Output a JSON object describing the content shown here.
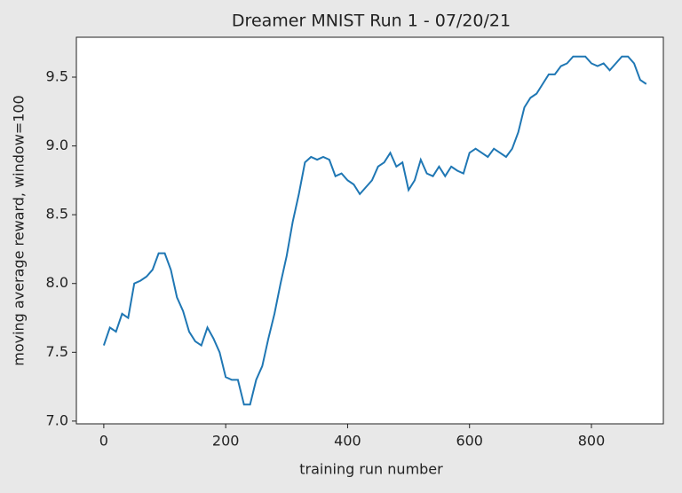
{
  "chart_data": {
    "type": "line",
    "title": "Dreamer MNIST Run 1 - 07/20/21",
    "x_label": "training run number",
    "y_label": "moving average reward, window=100",
    "x": [
      0,
      10,
      20,
      30,
      40,
      50,
      60,
      70,
      80,
      90,
      100,
      110,
      120,
      130,
      140,
      150,
      160,
      170,
      180,
      190,
      200,
      210,
      220,
      230,
      240,
      250,
      260,
      270,
      280,
      290,
      300,
      310,
      320,
      330,
      340,
      350,
      360,
      370,
      380,
      390,
      400,
      410,
      420,
      430,
      440,
      450,
      460,
      470,
      480,
      490,
      500,
      510,
      520,
      530,
      540,
      550,
      560,
      570,
      580,
      590,
      600,
      610,
      620,
      630,
      640,
      650,
      660,
      670,
      680,
      690,
      700,
      710,
      720,
      730,
      740,
      750,
      760,
      770,
      780,
      790,
      800,
      810,
      820,
      830,
      840,
      850,
      860,
      870,
      880,
      890
    ],
    "series": [
      {
        "name": "reward",
        "color": "#1f77b4",
        "values": [
          7.55,
          7.68,
          7.65,
          7.78,
          7.75,
          8.0,
          8.02,
          8.05,
          8.1,
          8.22,
          8.22,
          8.1,
          7.9,
          7.8,
          7.65,
          7.58,
          7.55,
          7.68,
          7.6,
          7.5,
          7.32,
          7.3,
          7.3,
          7.12,
          7.12,
          7.3,
          7.4,
          7.6,
          7.78,
          8.0,
          8.2,
          8.45,
          8.65,
          8.88,
          8.92,
          8.9,
          8.92,
          8.9,
          8.78,
          8.8,
          8.75,
          8.72,
          8.65,
          8.7,
          8.75,
          8.85,
          8.88,
          8.95,
          8.85,
          8.88,
          8.68,
          8.75,
          8.9,
          8.8,
          8.78,
          8.85,
          8.78,
          8.85,
          8.82,
          8.8,
          8.95,
          8.98,
          8.95,
          8.92,
          8.98,
          8.95,
          8.92,
          8.98,
          9.1,
          9.28,
          9.35,
          9.38,
          9.45,
          9.52,
          9.52,
          9.58,
          9.6,
          9.65,
          9.65,
          9.65,
          9.6,
          9.58,
          9.6,
          9.55,
          9.6,
          9.65,
          9.65,
          9.6,
          9.48,
          9.45
        ]
      }
    ],
    "xlim": [
      -45,
      918
    ],
    "ylim": [
      6.98,
      9.79
    ],
    "xticks": [
      0,
      200,
      400,
      600,
      800
    ],
    "yticks": [
      {
        "value": 7.0,
        "label": "7.0"
      },
      {
        "value": 7.5,
        "label": "7.5"
      },
      {
        "value": 8.0,
        "label": "8.0"
      },
      {
        "value": 8.5,
        "label": "8.5"
      },
      {
        "value": 9.0,
        "label": "9.0"
      },
      {
        "value": 9.5,
        "label": "9.5"
      }
    ]
  }
}
